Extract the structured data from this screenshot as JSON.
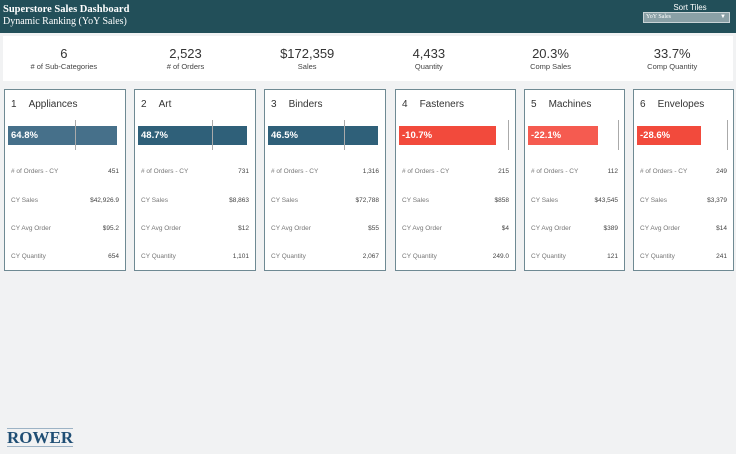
{
  "header": {
    "title": "Superstore Sales Dashboard",
    "subtitle": "Dynamic Ranking (YoY Sales)",
    "sort_label": "Sort Tiles",
    "sort_value": "YoY Sales"
  },
  "kpis": [
    {
      "value": "6",
      "label": "# of Sub-Categories"
    },
    {
      "value": "2,523",
      "label": "# of Orders"
    },
    {
      "value": "$172,359",
      "label": "Sales"
    },
    {
      "value": "4,433",
      "label": "Quantity"
    },
    {
      "value": "20.3%",
      "label": "Comp Sales"
    },
    {
      "value": "33.7%",
      "label": "Comp Quantity"
    }
  ],
  "row_labels": {
    "orders": "# of Orders - CY",
    "sales": "CY Sales",
    "avg": "CY Avg Order",
    "qty": "CY Quantity"
  },
  "colors": {
    "header": "#224f59",
    "positive": "#2f6079",
    "positive_top": "#46708a",
    "negative": "#f24a3c",
    "negative_light": "#f55b50"
  },
  "cards": [
    {
      "rank": "1",
      "name": "Appliances",
      "yoy": "64.8%",
      "orders": "451",
      "sales": "$42,926.9",
      "avg": "$95.2",
      "qty": "654"
    },
    {
      "rank": "2",
      "name": "Art",
      "yoy": "48.7%",
      "orders": "731",
      "sales": "$8,863",
      "avg": "$12",
      "qty": "1,101"
    },
    {
      "rank": "3",
      "name": "Binders",
      "yoy": "46.5%",
      "orders": "1,316",
      "sales": "$72,788",
      "avg": "$55",
      "qty": "2,067"
    },
    {
      "rank": "4",
      "name": "Fasteners",
      "yoy": "-10.7%",
      "orders": "215",
      "sales": "$858",
      "avg": "$4",
      "qty": "249.0"
    },
    {
      "rank": "5",
      "name": "Machines",
      "yoy": "-22.1%",
      "orders": "112",
      "sales": "$43,545",
      "avg": "$389",
      "qty": "121"
    },
    {
      "rank": "6",
      "name": "Envelopes",
      "yoy": "-28.6%",
      "orders": "249",
      "sales": "$3,379",
      "avg": "$14",
      "qty": "241"
    }
  ],
  "logo": "ROWER"
}
